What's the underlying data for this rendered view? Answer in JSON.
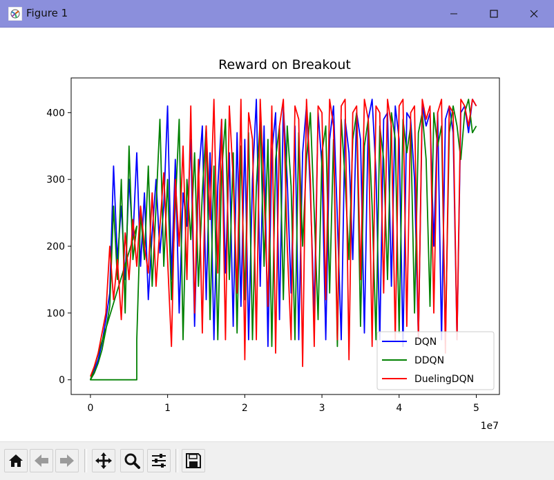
{
  "window": {
    "title": "Figure 1",
    "titlebar_color": "#8b8fdc"
  },
  "toolbar": {
    "buttons": [
      "home-icon",
      "back-arrow-icon",
      "forward-arrow-icon",
      "pan-move-icon",
      "zoom-magnifier-icon",
      "configure-subplots-icon",
      "save-floppy-icon"
    ]
  },
  "chart_data": {
    "type": "line",
    "title": "Reward on Breakout",
    "xlabel": "",
    "ylabel": "",
    "x_offset_label": "1e7",
    "xlim": [
      -0.25,
      5.3
    ],
    "ylim": [
      -22,
      452
    ],
    "xticks": [
      0,
      1,
      2,
      3,
      4,
      5
    ],
    "xtick_labels": [
      "0",
      "1",
      "2",
      "3",
      "4",
      "5"
    ],
    "yticks": [
      0,
      100,
      200,
      300,
      400
    ],
    "ytick_labels": [
      "0",
      "100",
      "200",
      "300",
      "400"
    ],
    "grid": false,
    "legend_position": "lower-right",
    "series": [
      {
        "name": "DQN",
        "color": "#0000ff",
        "x": [
          0.0,
          0.05,
          0.1,
          0.15,
          0.2,
          0.25,
          0.3,
          0.35,
          0.4,
          0.45,
          0.5,
          0.55,
          0.6,
          0.65,
          0.7,
          0.75,
          0.8,
          0.85,
          0.9,
          0.95,
          1.0,
          1.05,
          1.1,
          1.15,
          1.2,
          1.25,
          1.3,
          1.35,
          1.4,
          1.45,
          1.5,
          1.55,
          1.6,
          1.65,
          1.7,
          1.75,
          1.8,
          1.85,
          1.9,
          1.95,
          2.0,
          2.05,
          2.1,
          2.15,
          2.2,
          2.25,
          2.3,
          2.35,
          2.4,
          2.45,
          2.5,
          2.55,
          2.6,
          2.65,
          2.7,
          2.75,
          2.8,
          2.85,
          2.9,
          2.95,
          3.0,
          3.05,
          3.1,
          3.15,
          3.2,
          3.25,
          3.3,
          3.35,
          3.4,
          3.45,
          3.5,
          3.55,
          3.6,
          3.65,
          3.7,
          3.75,
          3.8,
          3.85,
          3.9,
          3.95,
          4.0,
          4.05,
          4.1,
          4.15,
          4.2,
          4.25,
          4.3,
          4.35,
          4.4,
          4.45,
          4.5,
          4.55,
          4.6,
          4.65,
          4.7,
          4.75,
          4.8,
          4.85,
          4.9,
          4.95,
          5.0
        ],
        "values": [
          0,
          15,
          30,
          55,
          90,
          130,
          320,
          180,
          260,
          150,
          300,
          210,
          340,
          170,
          280,
          120,
          220,
          300,
          190,
          260,
          410,
          150,
          330,
          100,
          280,
          230,
          360,
          80,
          300,
          380,
          120,
          340,
          60,
          290,
          390,
          160,
          340,
          80,
          370,
          110,
          360,
          60,
          300,
          420,
          140,
          380,
          50,
          340,
          400,
          90,
          410,
          300,
          130,
          380,
          60,
          340,
          410,
          280,
          100,
          400,
          320,
          60,
          360,
          410,
          240,
          60,
          390,
          340,
          180,
          400,
          360,
          70,
          390,
          420,
          310,
          60,
          390,
          400,
          140,
          410,
          360,
          50,
          400,
          390,
          300,
          60,
          410,
          380,
          400,
          200,
          400,
          60,
          390,
          410,
          370,
          60,
          400,
          410,
          370,
          420,
          410
        ]
      },
      {
        "name": "DDQN",
        "color": "#008000",
        "x": [
          0.0,
          0.05,
          0.1,
          0.15,
          0.2,
          0.25,
          0.3,
          0.35,
          0.4,
          0.45,
          0.5,
          0.55,
          0.6,
          0.0,
          0.6,
          0.6,
          0.65,
          0.7,
          0.75,
          0.8,
          0.85,
          0.9,
          0.95,
          1.0,
          1.05,
          1.1,
          1.15,
          1.2,
          1.25,
          1.3,
          1.35,
          1.4,
          1.45,
          1.5,
          1.55,
          1.6,
          1.65,
          1.7,
          1.75,
          1.8,
          1.85,
          1.9,
          1.95,
          2.0,
          2.05,
          2.1,
          2.15,
          2.2,
          2.25,
          2.3,
          2.35,
          2.4,
          2.45,
          2.5,
          2.55,
          2.6,
          2.65,
          2.7,
          2.75,
          2.8,
          2.85,
          2.9,
          2.95,
          3.0,
          3.05,
          3.1,
          3.15,
          3.2,
          3.25,
          3.3,
          3.35,
          3.4,
          3.45,
          3.5,
          3.55,
          3.6,
          3.65,
          3.7,
          3.75,
          3.8,
          3.85,
          3.9,
          3.95,
          4.0,
          4.05,
          4.1,
          4.15,
          4.2,
          4.25,
          4.3,
          4.35,
          4.4,
          4.45,
          4.5,
          4.55,
          4.6,
          4.65,
          4.7,
          4.75,
          4.8,
          4.85,
          4.9,
          4.95,
          5.0
        ],
        "values": [
          0,
          10,
          25,
          45,
          75,
          110,
          260,
          150,
          300,
          100,
          350,
          180,
          230,
          0,
          0,
          60,
          250,
          180,
          320,
          140,
          260,
          390,
          170,
          300,
          120,
          260,
          390,
          60,
          300,
          210,
          340,
          140,
          280,
          380,
          90,
          320,
          60,
          310,
          390,
          150,
          340,
          70,
          350,
          120,
          370,
          60,
          290,
          390,
          170,
          360,
          50,
          330,
          380,
          120,
          380,
          290,
          60,
          370,
          200,
          330,
          400,
          250,
          90,
          340,
          380,
          130,
          360,
          50,
          390,
          300,
          180,
          360,
          400,
          80,
          350,
          390,
          260,
          60,
          380,
          330,
          150,
          400,
          360,
          70,
          390,
          340,
          380,
          100,
          370,
          400,
          330,
          110,
          400,
          350,
          380,
          60,
          370,
          410,
          380,
          330,
          400,
          420,
          370,
          380
        ]
      },
      {
        "name": "DuelingDQN",
        "color": "#ff0000",
        "x": [
          0.0,
          0.05,
          0.1,
          0.15,
          0.2,
          0.25,
          0.3,
          0.35,
          0.4,
          0.45,
          0.5,
          0.55,
          0.6,
          0.65,
          0.7,
          0.75,
          0.8,
          0.85,
          0.9,
          0.95,
          1.0,
          1.05,
          1.1,
          1.15,
          1.2,
          1.25,
          1.3,
          1.35,
          1.4,
          1.45,
          1.5,
          1.55,
          1.6,
          1.65,
          1.7,
          1.75,
          1.8,
          1.85,
          1.9,
          1.95,
          2.0,
          2.05,
          2.1,
          2.15,
          2.2,
          2.25,
          2.3,
          2.35,
          2.4,
          2.45,
          2.5,
          2.55,
          2.6,
          2.65,
          2.7,
          2.75,
          2.8,
          2.85,
          2.9,
          2.95,
          3.0,
          3.05,
          3.1,
          3.15,
          3.2,
          3.25,
          3.3,
          3.35,
          3.4,
          3.45,
          3.5,
          3.55,
          3.6,
          3.65,
          3.7,
          3.75,
          3.8,
          3.85,
          3.9,
          3.95,
          4.0,
          4.05,
          4.1,
          4.15,
          4.2,
          4.25,
          4.3,
          4.35,
          4.4,
          4.45,
          4.5,
          4.55,
          4.6,
          4.65,
          4.7,
          4.75,
          4.8,
          4.85,
          4.9,
          4.95,
          5.0
        ],
        "values": [
          5,
          20,
          40,
          70,
          100,
          200,
          120,
          180,
          90,
          220,
          150,
          240,
          170,
          260,
          200,
          160,
          280,
          140,
          230,
          310,
          180,
          50,
          300,
          200,
          350,
          150,
          410,
          100,
          330,
          70,
          380,
          240,
          420,
          160,
          390,
          60,
          410,
          300,
          130,
          420,
          30,
          400,
          360,
          60,
          420,
          280,
          110,
          410,
          40,
          380,
          420,
          200,
          60,
          410,
          390,
          20,
          420,
          300,
          50,
          410,
          400,
          120,
          420,
          380,
          60,
          410,
          420,
          30,
          400,
          410,
          150,
          420,
          390,
          50,
          410,
          400,
          130,
          420,
          380,
          60,
          410,
          420,
          80,
          400,
          410,
          60,
          420,
          390,
          410,
          100,
          400,
          420,
          40,
          410,
          400,
          60,
          420,
          410,
          380,
          420,
          410
        ]
      }
    ]
  }
}
